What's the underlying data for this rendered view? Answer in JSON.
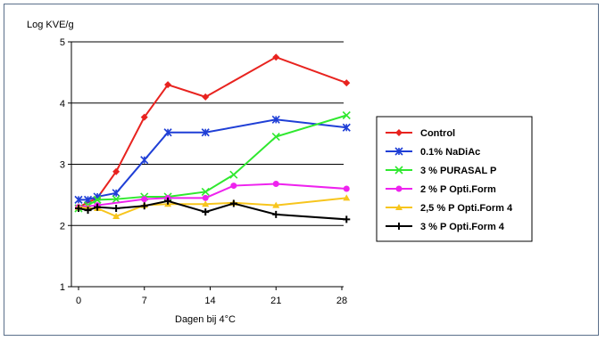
{
  "chart_data": {
    "type": "line",
    "ylabel": "Log KVE/g",
    "xlabel": "Dagen bij 4°C",
    "ylim": [
      1,
      5
    ],
    "xlim": [
      0,
      28
    ],
    "x_ticks": [
      0,
      7,
      14,
      21,
      28
    ],
    "y_ticks": [
      1,
      2,
      3,
      4,
      5
    ],
    "grid": "horizontal",
    "legend_position": "right",
    "series": [
      {
        "name": "Control",
        "color": "#e8231f",
        "marker": "diamond",
        "x": [
          0,
          2,
          4,
          7,
          9.5,
          13.5,
          21,
          28.5
        ],
        "y": [
          2.3,
          2.45,
          2.88,
          3.77,
          4.3,
          4.1,
          4.75,
          4.33
        ]
      },
      {
        "name": "0.1% NaDiAc",
        "color": "#1f3fd6",
        "marker": "asterisk",
        "x": [
          0,
          1,
          2,
          4,
          7,
          9.5,
          13.5,
          21,
          28.5
        ],
        "y": [
          2.42,
          2.42,
          2.47,
          2.53,
          3.07,
          3.52,
          3.52,
          3.73,
          3.6
        ]
      },
      {
        "name": "3 % PURASAL P",
        "color": "#2fe82f",
        "marker": "x",
        "x": [
          0,
          1,
          2,
          4,
          7,
          9.5,
          13.5,
          16.5,
          21,
          28.5
        ],
        "y": [
          2.28,
          2.33,
          2.42,
          2.43,
          2.47,
          2.47,
          2.55,
          2.83,
          3.45,
          3.8
        ]
      },
      {
        "name": "2 % P Opti.Form",
        "color": "#ee22ee",
        "marker": "circle",
        "x": [
          0,
          2,
          7,
          9.5,
          13.5,
          16.5,
          21,
          28.5
        ],
        "y": [
          2.3,
          2.33,
          2.43,
          2.45,
          2.45,
          2.65,
          2.68,
          2.6
        ]
      },
      {
        "name": "2,5 % P Opti.Form 4",
        "color": "#f7c51d",
        "marker": "triangle",
        "x": [
          0,
          1,
          2,
          4,
          7,
          9.5,
          13.5,
          16.5,
          21,
          28.5
        ],
        "y": [
          2.3,
          2.28,
          2.28,
          2.15,
          2.33,
          2.35,
          2.35,
          2.37,
          2.33,
          2.45
        ]
      },
      {
        "name": "3 % P Opti.Form 4",
        "color": "#000000",
        "marker": "plus",
        "x": [
          0,
          1,
          2,
          4,
          7,
          9.5,
          13.5,
          16.5,
          21,
          28.5
        ],
        "y": [
          2.28,
          2.25,
          2.3,
          2.28,
          2.32,
          2.4,
          2.22,
          2.36,
          2.18,
          2.1
        ]
      }
    ]
  }
}
